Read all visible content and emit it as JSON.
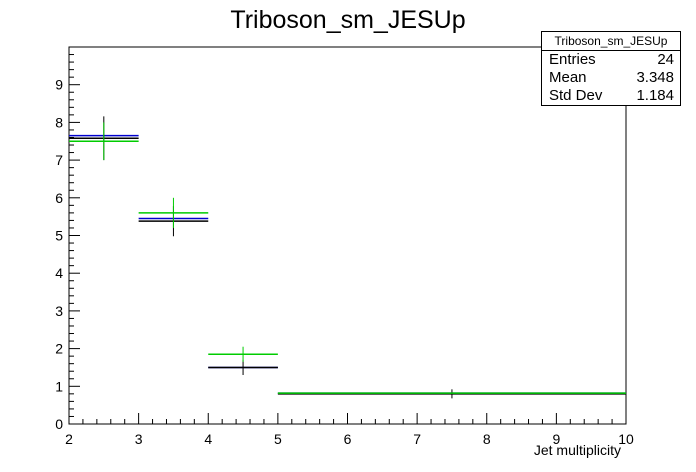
{
  "chart_data": {
    "type": "scatter",
    "title": "Triboson_sm_JESUp",
    "xlabel": "Jet multiplicity",
    "ylabel": "",
    "xlim": [
      2,
      10
    ],
    "ylim": [
      0,
      10
    ],
    "x_ticks": [
      "2",
      "3",
      "4",
      "5",
      "6",
      "7",
      "8",
      "9",
      "10"
    ],
    "y_ticks": [
      "0",
      "1",
      "2",
      "3",
      "4",
      "5",
      "6",
      "7",
      "8",
      "9"
    ],
    "grid": false,
    "stats_box": {
      "name": "Triboson_sm_JESUp",
      "rows": [
        {
          "label": "Entries",
          "value": "24"
        },
        {
          "label": "Mean",
          "value": "3.348"
        },
        {
          "label": "Std Dev",
          "value": "1.184"
        }
      ]
    },
    "series": [
      {
        "color": "#0000cc",
        "bins": [
          {
            "x_low": 2,
            "x_high": 3,
            "value": 7.65,
            "error": 0.0
          },
          {
            "x_low": 3,
            "x_high": 4,
            "value": 5.45,
            "error": 0.0
          },
          {
            "x_low": 4,
            "x_high": 5,
            "value": 1.5,
            "error": 0.0
          },
          {
            "x_low": 5,
            "x_high": 10,
            "value": 0.82,
            "error": 0.0
          }
        ]
      },
      {
        "color": "#000000",
        "bins": [
          {
            "x_low": 2,
            "x_high": 3,
            "value": 7.58,
            "error": 0.58
          },
          {
            "x_low": 3,
            "x_high": 4,
            "value": 5.38,
            "error": 0.4
          },
          {
            "x_low": 4,
            "x_high": 5,
            "value": 1.5,
            "error": 0.2
          },
          {
            "x_low": 5,
            "x_high": 10,
            "value": 0.8,
            "error": 0.12
          }
        ]
      },
      {
        "color": "#00cc00",
        "bins": [
          {
            "x_low": 2,
            "x_high": 3,
            "value": 7.5,
            "error": 0.5
          },
          {
            "x_low": 3,
            "x_high": 4,
            "value": 5.6,
            "error": 0.4
          },
          {
            "x_low": 4,
            "x_high": 5,
            "value": 1.85,
            "error": 0.2
          },
          {
            "x_low": 5,
            "x_high": 10,
            "value": 0.82,
            "error": 0.0
          }
        ]
      }
    ]
  }
}
